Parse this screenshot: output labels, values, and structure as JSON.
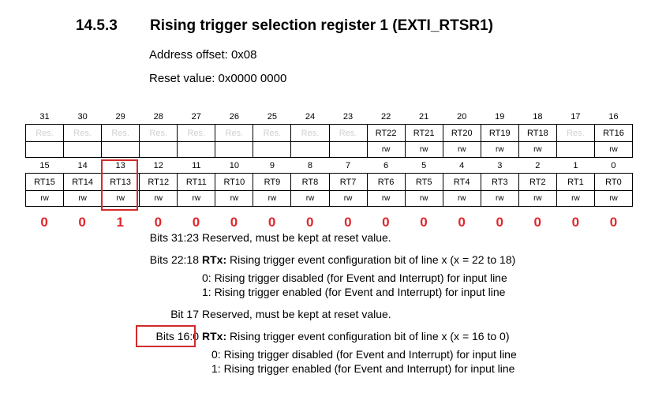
{
  "section": {
    "number": "14.5.3",
    "title": "Rising trigger selection register 1 (EXTI_RTSR1)"
  },
  "address_offset": "Address offset: 0x08",
  "reset_value": "Reset value: 0x0000 0000",
  "register": {
    "upper_bits": [
      "31",
      "30",
      "29",
      "28",
      "27",
      "26",
      "25",
      "24",
      "23",
      "22",
      "21",
      "20",
      "19",
      "18",
      "17",
      "16"
    ],
    "upper_names": [
      "Res.",
      "Res.",
      "Res.",
      "Res.",
      "Res.",
      "Res.",
      "Res.",
      "Res.",
      "Res.",
      "RT22",
      "RT21",
      "RT20",
      "RT19",
      "RT18",
      "Res.",
      "RT16"
    ],
    "upper_access": [
      "",
      "",
      "",
      "",
      "",
      "",
      "",
      "",
      "",
      "rw",
      "rw",
      "rw",
      "rw",
      "rw",
      "",
      "rw"
    ],
    "lower_bits": [
      "15",
      "14",
      "13",
      "12",
      "11",
      "10",
      "9",
      "8",
      "7",
      "6",
      "5",
      "4",
      "3",
      "2",
      "1",
      "0"
    ],
    "lower_names": [
      "RT15",
      "RT14",
      "RT13",
      "RT12",
      "RT11",
      "RT10",
      "RT9",
      "RT8",
      "RT7",
      "RT6",
      "RT5",
      "RT4",
      "RT3",
      "RT2",
      "RT1",
      "RT0"
    ],
    "lower_access": [
      "rw",
      "rw",
      "rw",
      "rw",
      "rw",
      "rw",
      "rw",
      "rw",
      "rw",
      "rw",
      "rw",
      "rw",
      "rw",
      "rw",
      "rw",
      "rw"
    ],
    "annotated_values": [
      "0",
      "0",
      "1",
      "0",
      "0",
      "0",
      "0",
      "0",
      "0",
      "0",
      "0",
      "0",
      "0",
      "0",
      "0",
      "0"
    ]
  },
  "descriptions": [
    {
      "label": "Bits 31:23",
      "text": "Reserved, must be kept at reset value."
    },
    {
      "label": "Bits 22:18",
      "bold": "RTx:",
      "text": " Rising trigger event configuration bit of line x (x = 22 to 18)"
    },
    {
      "sub": "0: Rising trigger disabled (for Event and Interrupt) for input line"
    },
    {
      "sub": "1: Rising trigger enabled (for Event and Interrupt) for input line"
    },
    {
      "label": "Bit 17",
      "text": "Reserved, must be kept at reset value."
    },
    {
      "label": "Bits 16:0",
      "bold": "RTx:",
      "text": " Rising trigger event configuration bit of line x (x = 16 to 0)"
    },
    {
      "sub": "0: Rising trigger disabled (for Event and Interrupt) for input line"
    },
    {
      "sub": "1: Rising trigger enabled (for Event and Interrupt) for input line"
    }
  ]
}
